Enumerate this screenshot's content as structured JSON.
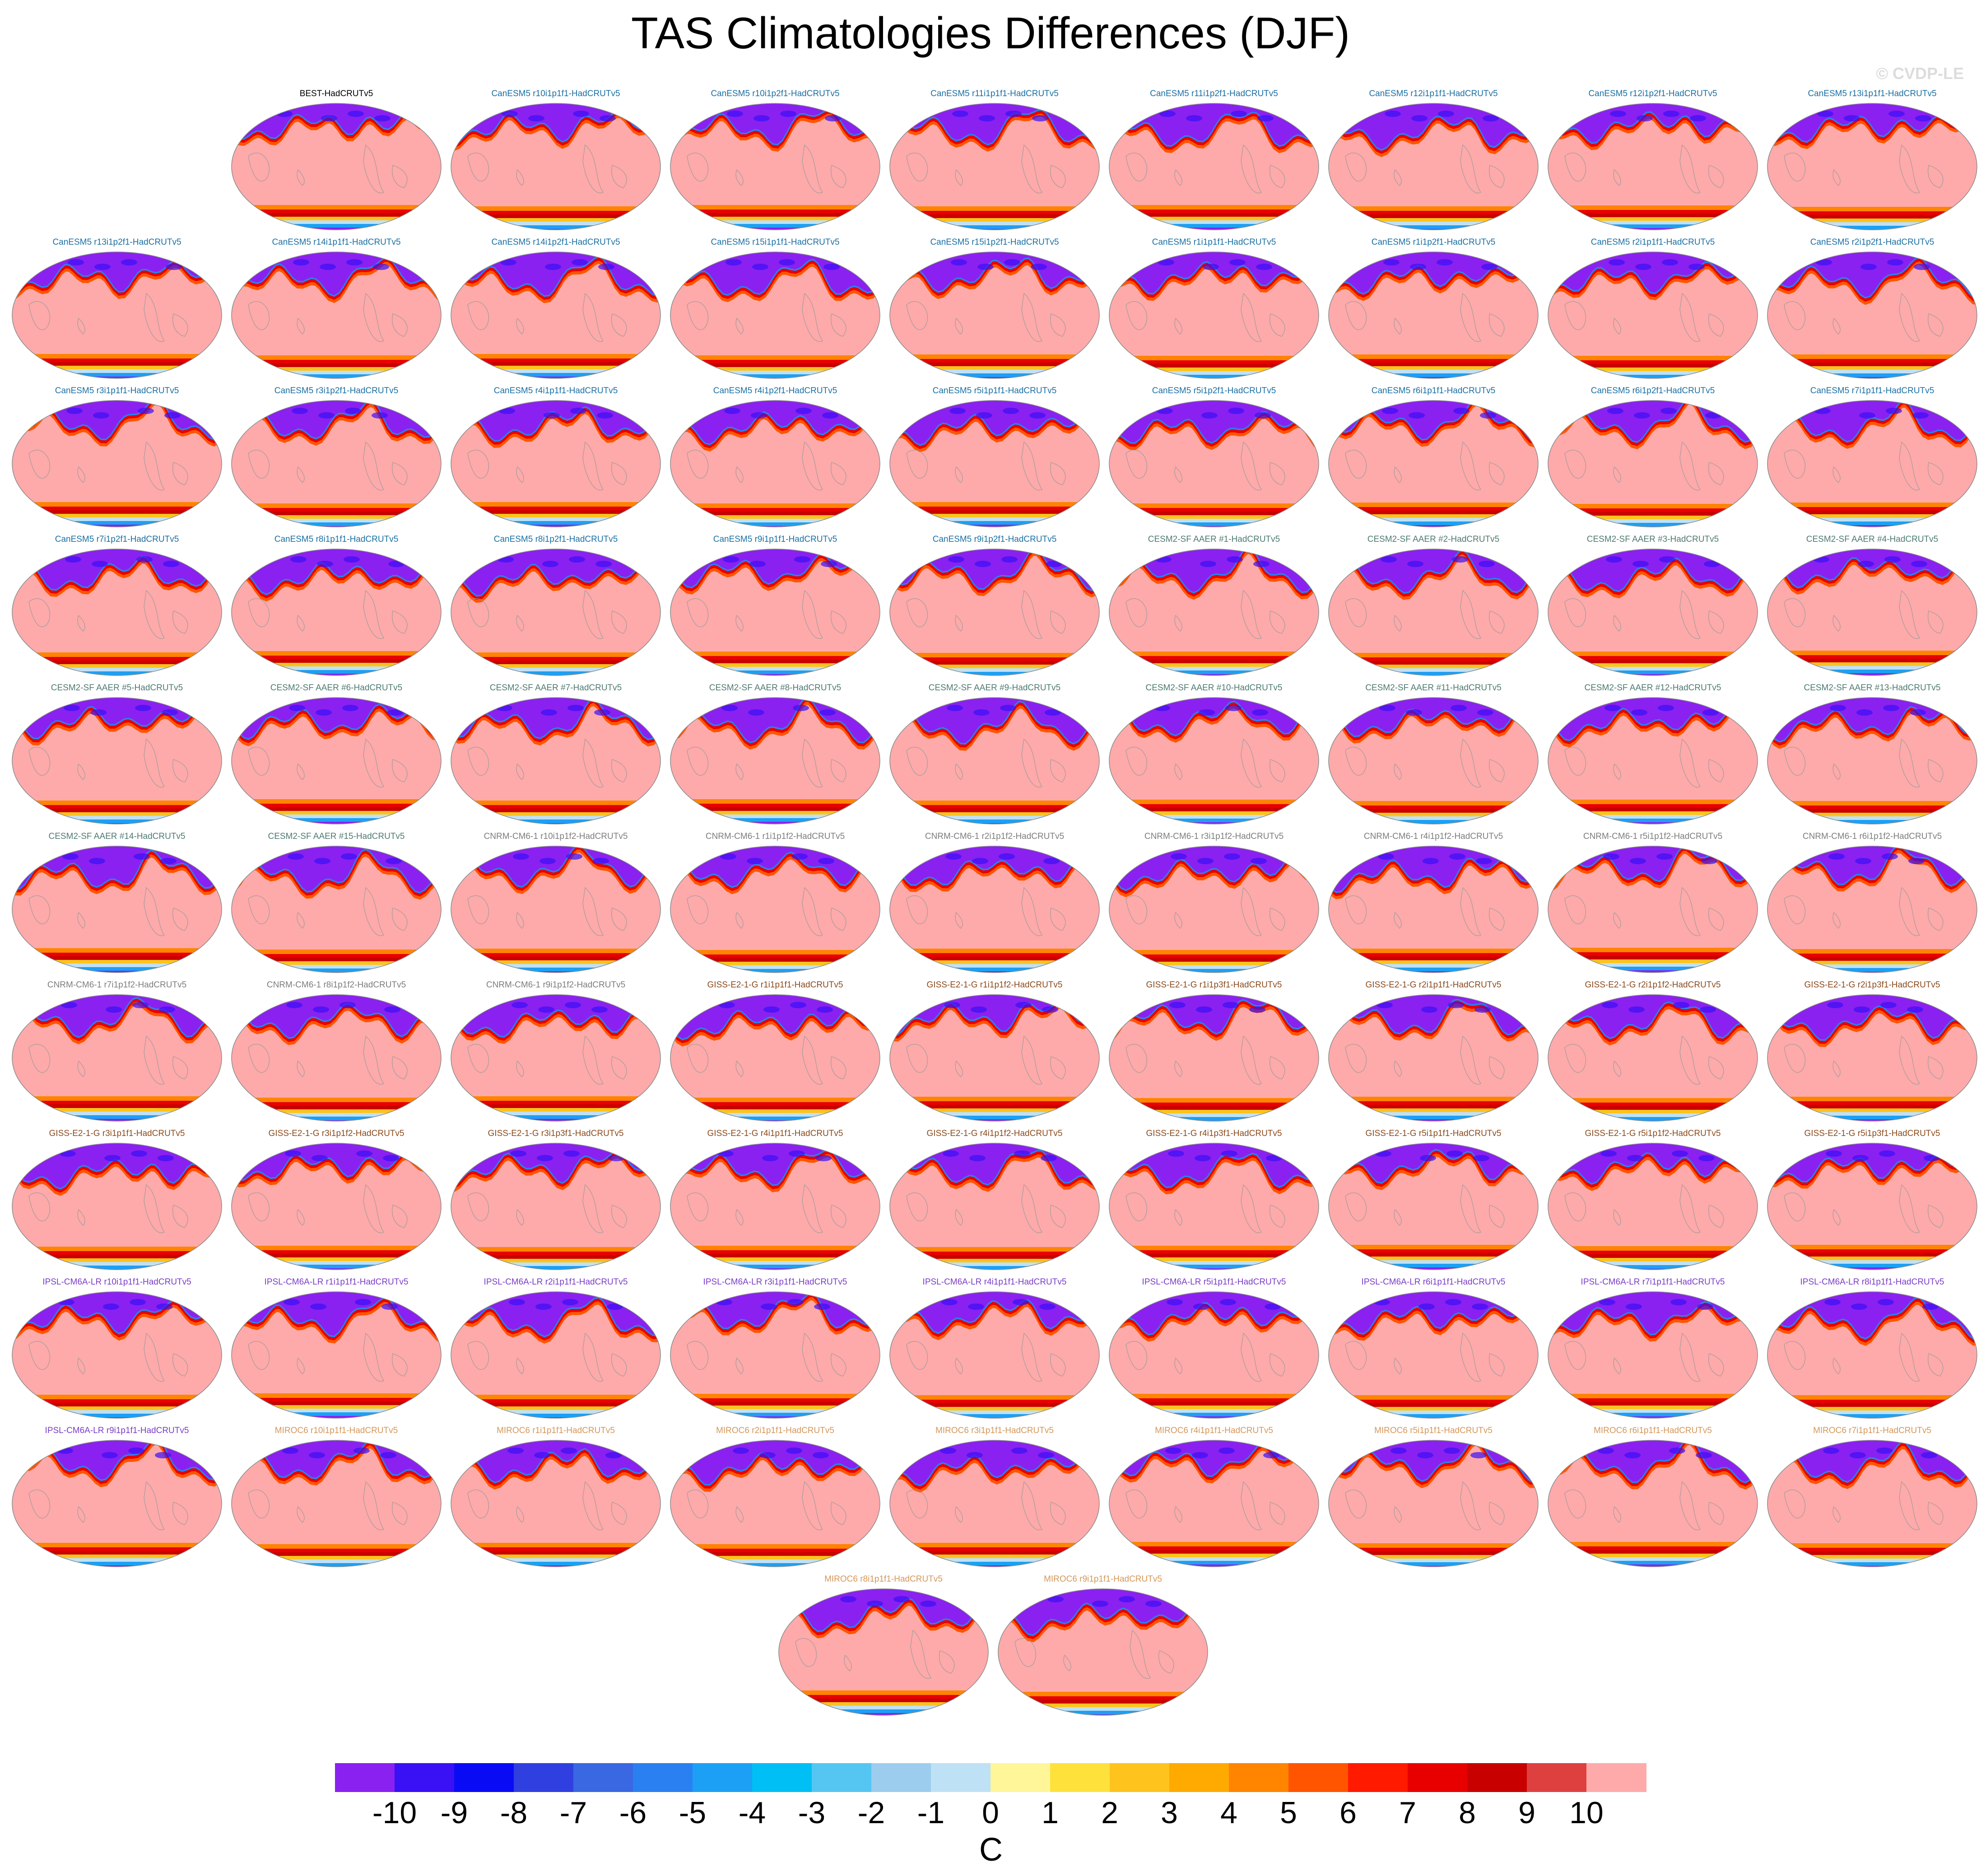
{
  "title": "TAS Climatologies Differences (DJF)",
  "watermark": "© CVDP-LE",
  "chart_data": {
    "type": "heatmap",
    "title": "TAS Climatologies Differences (DJF)",
    "projection": "robinson",
    "variable": "TAS",
    "season": "DJF",
    "grid": false,
    "legend_placement": "bottom-center",
    "colorbar": {
      "unit": "C",
      "ticks": [
        "-10",
        "-9",
        "-8",
        "-7",
        "-6",
        "-5",
        "-4",
        "-3",
        "-2",
        "-1",
        "0",
        "1",
        "2",
        "3",
        "4",
        "5",
        "6",
        "7",
        "8",
        "9",
        "10"
      ],
      "colors": [
        "#8a21f0",
        "#3a10f5",
        "#0a0bf5",
        "#3040e0",
        "#3a68e3",
        "#2a80f0",
        "#1ca0f5",
        "#00bff5",
        "#55c6f2",
        "#9ccdee",
        "#bfe1f6",
        "#fff69a",
        "#ffe13c",
        "#ffc31e",
        "#ffaa00",
        "#ff8400",
        "#ff5500",
        "#ff1a00",
        "#e80000",
        "#c80000",
        "#de4040",
        "#ffaaaa"
      ]
    },
    "panels": [
      {
        "label": "BEST-HadCRUTv5",
        "group": "BEST"
      },
      {
        "label": "CanESM5 r10i1p1f1-HadCRUTv5",
        "group": "CanESM5"
      },
      {
        "label": "CanESM5 r10i1p2f1-HadCRUTv5",
        "group": "CanESM5"
      },
      {
        "label": "CanESM5 r11i1p1f1-HadCRUTv5",
        "group": "CanESM5"
      },
      {
        "label": "CanESM5 r11i1p2f1-HadCRUTv5",
        "group": "CanESM5"
      },
      {
        "label": "CanESM5 r12i1p1f1-HadCRUTv5",
        "group": "CanESM5"
      },
      {
        "label": "CanESM5 r12i1p2f1-HadCRUTv5",
        "group": "CanESM5"
      },
      {
        "label": "CanESM5 r13i1p1f1-HadCRUTv5",
        "group": "CanESM5"
      },
      {
        "label": "CanESM5 r13i1p2f1-HadCRUTv5",
        "group": "CanESM5"
      },
      {
        "label": "CanESM5 r14i1p1f1-HadCRUTv5",
        "group": "CanESM5"
      },
      {
        "label": "CanESM5 r14i1p2f1-HadCRUTv5",
        "group": "CanESM5"
      },
      {
        "label": "CanESM5 r15i1p1f1-HadCRUTv5",
        "group": "CanESM5"
      },
      {
        "label": "CanESM5 r15i1p2f1-HadCRUTv5",
        "group": "CanESM5"
      },
      {
        "label": "CanESM5 r1i1p1f1-HadCRUTv5",
        "group": "CanESM5"
      },
      {
        "label": "CanESM5 r1i1p2f1-HadCRUTv5",
        "group": "CanESM5"
      },
      {
        "label": "CanESM5 r2i1p1f1-HadCRUTv5",
        "group": "CanESM5"
      },
      {
        "label": "CanESM5 r2i1p2f1-HadCRUTv5",
        "group": "CanESM5"
      },
      {
        "label": "CanESM5 r3i1p1f1-HadCRUTv5",
        "group": "CanESM5"
      },
      {
        "label": "CanESM5 r3i1p2f1-HadCRUTv5",
        "group": "CanESM5"
      },
      {
        "label": "CanESM5 r4i1p1f1-HadCRUTv5",
        "group": "CanESM5"
      },
      {
        "label": "CanESM5 r4i1p2f1-HadCRUTv5",
        "group": "CanESM5"
      },
      {
        "label": "CanESM5 r5i1p1f1-HadCRUTv5",
        "group": "CanESM5"
      },
      {
        "label": "CanESM5 r5i1p2f1-HadCRUTv5",
        "group": "CanESM5"
      },
      {
        "label": "CanESM5 r6i1p1f1-HadCRUTv5",
        "group": "CanESM5"
      },
      {
        "label": "CanESM5 r6i1p2f1-HadCRUTv5",
        "group": "CanESM5"
      },
      {
        "label": "CanESM5 r7i1p1f1-HadCRUTv5",
        "group": "CanESM5"
      },
      {
        "label": "CanESM5 r7i1p2f1-HadCRUTv5",
        "group": "CanESM5"
      },
      {
        "label": "CanESM5 r8i1p1f1-HadCRUTv5",
        "group": "CanESM5"
      },
      {
        "label": "CanESM5 r8i1p2f1-HadCRUTv5",
        "group": "CanESM5"
      },
      {
        "label": "CanESM5 r9i1p1f1-HadCRUTv5",
        "group": "CanESM5"
      },
      {
        "label": "CanESM5 r9i1p2f1-HadCRUTv5",
        "group": "CanESM5"
      },
      {
        "label": "CESM2-SF AAER #1-HadCRUTv5",
        "group": "CESM2"
      },
      {
        "label": "CESM2-SF AAER #2-HadCRUTv5",
        "group": "CESM2"
      },
      {
        "label": "CESM2-SF AAER #3-HadCRUTv5",
        "group": "CESM2"
      },
      {
        "label": "CESM2-SF AAER #4-HadCRUTv5",
        "group": "CESM2"
      },
      {
        "label": "CESM2-SF AAER #5-HadCRUTv5",
        "group": "CESM2"
      },
      {
        "label": "CESM2-SF AAER #6-HadCRUTv5",
        "group": "CESM2"
      },
      {
        "label": "CESM2-SF AAER #7-HadCRUTv5",
        "group": "CESM2"
      },
      {
        "label": "CESM2-SF AAER #8-HadCRUTv5",
        "group": "CESM2"
      },
      {
        "label": "CESM2-SF AAER #9-HadCRUTv5",
        "group": "CESM2"
      },
      {
        "label": "CESM2-SF AAER #10-HadCRUTv5",
        "group": "CESM2"
      },
      {
        "label": "CESM2-SF AAER #11-HadCRUTv5",
        "group": "CESM2"
      },
      {
        "label": "CESM2-SF AAER #12-HadCRUTv5",
        "group": "CESM2"
      },
      {
        "label": "CESM2-SF AAER #13-HadCRUTv5",
        "group": "CESM2"
      },
      {
        "label": "CESM2-SF AAER #14-HadCRUTv5",
        "group": "CESM2"
      },
      {
        "label": "CESM2-SF AAER #15-HadCRUTv5",
        "group": "CESM2"
      },
      {
        "label": "CNRM-CM6-1 r10i1p1f2-HadCRUTv5",
        "group": "CNRM"
      },
      {
        "label": "CNRM-CM6-1 r1i1p1f2-HadCRUTv5",
        "group": "CNRM"
      },
      {
        "label": "CNRM-CM6-1 r2i1p1f2-HadCRUTv5",
        "group": "CNRM"
      },
      {
        "label": "CNRM-CM6-1 r3i1p1f2-HadCRUTv5",
        "group": "CNRM"
      },
      {
        "label": "CNRM-CM6-1 r4i1p1f2-HadCRUTv5",
        "group": "CNRM"
      },
      {
        "label": "CNRM-CM6-1 r5i1p1f2-HadCRUTv5",
        "group": "CNRM"
      },
      {
        "label": "CNRM-CM6-1 r6i1p1f2-HadCRUTv5",
        "group": "CNRM"
      },
      {
        "label": "CNRM-CM6-1 r7i1p1f2-HadCRUTv5",
        "group": "CNRM"
      },
      {
        "label": "CNRM-CM6-1 r8i1p1f2-HadCRUTv5",
        "group": "CNRM"
      },
      {
        "label": "CNRM-CM6-1 r9i1p1f2-HadCRUTv5",
        "group": "CNRM"
      },
      {
        "label": "GISS-E2-1-G r1i1p1f1-HadCRUTv5",
        "group": "GISS"
      },
      {
        "label": "GISS-E2-1-G r1i1p1f2-HadCRUTv5",
        "group": "GISS"
      },
      {
        "label": "GISS-E2-1-G r1i1p3f1-HadCRUTv5",
        "group": "GISS"
      },
      {
        "label": "GISS-E2-1-G r2i1p1f1-HadCRUTv5",
        "group": "GISS"
      },
      {
        "label": "GISS-E2-1-G r2i1p1f2-HadCRUTv5",
        "group": "GISS"
      },
      {
        "label": "GISS-E2-1-G r2i1p3f1-HadCRUTv5",
        "group": "GISS"
      },
      {
        "label": "GISS-E2-1-G r3i1p1f1-HadCRUTv5",
        "group": "GISS"
      },
      {
        "label": "GISS-E2-1-G r3i1p1f2-HadCRUTv5",
        "group": "GISS"
      },
      {
        "label": "GISS-E2-1-G r3i1p3f1-HadCRUTv5",
        "group": "GISS"
      },
      {
        "label": "GISS-E2-1-G r4i1p1f1-HadCRUTv5",
        "group": "GISS"
      },
      {
        "label": "GISS-E2-1-G r4i1p1f2-HadCRUTv5",
        "group": "GISS"
      },
      {
        "label": "GISS-E2-1-G r4i1p3f1-HadCRUTv5",
        "group": "GISS"
      },
      {
        "label": "GISS-E2-1-G r5i1p1f1-HadCRUTv5",
        "group": "GISS"
      },
      {
        "label": "GISS-E2-1-G r5i1p1f2-HadCRUTv5",
        "group": "GISS"
      },
      {
        "label": "GISS-E2-1-G r5i1p3f1-HadCRUTv5",
        "group": "GISS"
      },
      {
        "label": "IPSL-CM6A-LR r10i1p1f1-HadCRUTv5",
        "group": "IPSL"
      },
      {
        "label": "IPSL-CM6A-LR r1i1p1f1-HadCRUTv5",
        "group": "IPSL"
      },
      {
        "label": "IPSL-CM6A-LR r2i1p1f1-HadCRUTv5",
        "group": "IPSL"
      },
      {
        "label": "IPSL-CM6A-LR r3i1p1f1-HadCRUTv5",
        "group": "IPSL"
      },
      {
        "label": "IPSL-CM6A-LR r4i1p1f1-HadCRUTv5",
        "group": "IPSL"
      },
      {
        "label": "IPSL-CM6A-LR r5i1p1f1-HadCRUTv5",
        "group": "IPSL"
      },
      {
        "label": "IPSL-CM6A-LR r6i1p1f1-HadCRUTv5",
        "group": "IPSL"
      },
      {
        "label": "IPSL-CM6A-LR r7i1p1f1-HadCRUTv5",
        "group": "IPSL"
      },
      {
        "label": "IPSL-CM6A-LR r8i1p1f1-HadCRUTv5",
        "group": "IPSL"
      },
      {
        "label": "IPSL-CM6A-LR r9i1p1f1-HadCRUTv5",
        "group": "IPSL"
      },
      {
        "label": "MIROC6 r10i1p1f1-HadCRUTv5",
        "group": "MIROC6"
      },
      {
        "label": "MIROC6 r1i1p1f1-HadCRUTv5",
        "group": "MIROC6"
      },
      {
        "label": "MIROC6 r2i1p1f1-HadCRUTv5",
        "group": "MIROC6"
      },
      {
        "label": "MIROC6 r3i1p1f1-HadCRUTv5",
        "group": "MIROC6"
      },
      {
        "label": "MIROC6 r4i1p1f1-HadCRUTv5",
        "group": "MIROC6"
      },
      {
        "label": "MIROC6 r5i1p1f1-HadCRUTv5",
        "group": "MIROC6"
      },
      {
        "label": "MIROC6 r6i1p1f1-HadCRUTv5",
        "group": "MIROC6"
      },
      {
        "label": "MIROC6 r7i1p1f1-HadCRUTv5",
        "group": "MIROC6"
      },
      {
        "label": "MIROC6 r8i1p1f1-HadCRUTv5",
        "group": "MIROC6"
      },
      {
        "label": "MIROC6 r9i1p1f1-HadCRUTv5",
        "group": "MIROC6"
      }
    ],
    "label_colors": {
      "BEST": "#000000",
      "CanESM5": "#1a6fa3",
      "CESM2": "#4d7a70",
      "CNRM": "#7d7d7d",
      "GISS": "#8b4a1c",
      "IPSL": "#7a3dc7",
      "MIROC6": "#d4975a"
    }
  }
}
